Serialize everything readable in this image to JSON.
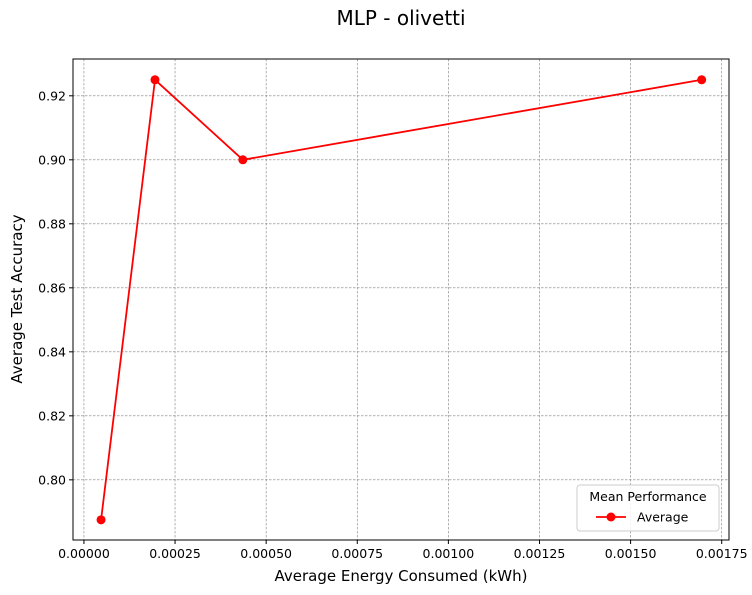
{
  "chart_data": {
    "type": "line",
    "title": "MLP - olivetti",
    "xlabel": "Average Energy Consumed (kWh)",
    "ylabel": "Average Test Accuracy",
    "xlim": [
      -3e-05,
      0.00177
    ],
    "ylim": [
      0.7812,
      0.9315
    ],
    "xticks": [
      0.0,
      0.00025,
      0.0005,
      0.00075,
      0.001,
      0.00125,
      0.0015,
      0.00175
    ],
    "xtick_labels": [
      "0.00000",
      "0.00025",
      "0.00050",
      "0.00075",
      "0.00100",
      "0.00125",
      "0.00150",
      "0.00175"
    ],
    "yticks": [
      0.8,
      0.82,
      0.84,
      0.86,
      0.88,
      0.9,
      0.92
    ],
    "ytick_labels": [
      "0.80",
      "0.82",
      "0.84",
      "0.86",
      "0.88",
      "0.90",
      "0.92"
    ],
    "grid": true,
    "legend": {
      "title": "Mean Performance",
      "position": "lower-right"
    },
    "series": [
      {
        "name": "Average",
        "color": "#ff0000",
        "marker": "circle",
        "x": [
          4.7e-05,
          0.000195,
          0.000436,
          0.001695
        ],
        "y": [
          0.7875,
          0.925,
          0.9,
          0.925
        ]
      }
    ]
  }
}
